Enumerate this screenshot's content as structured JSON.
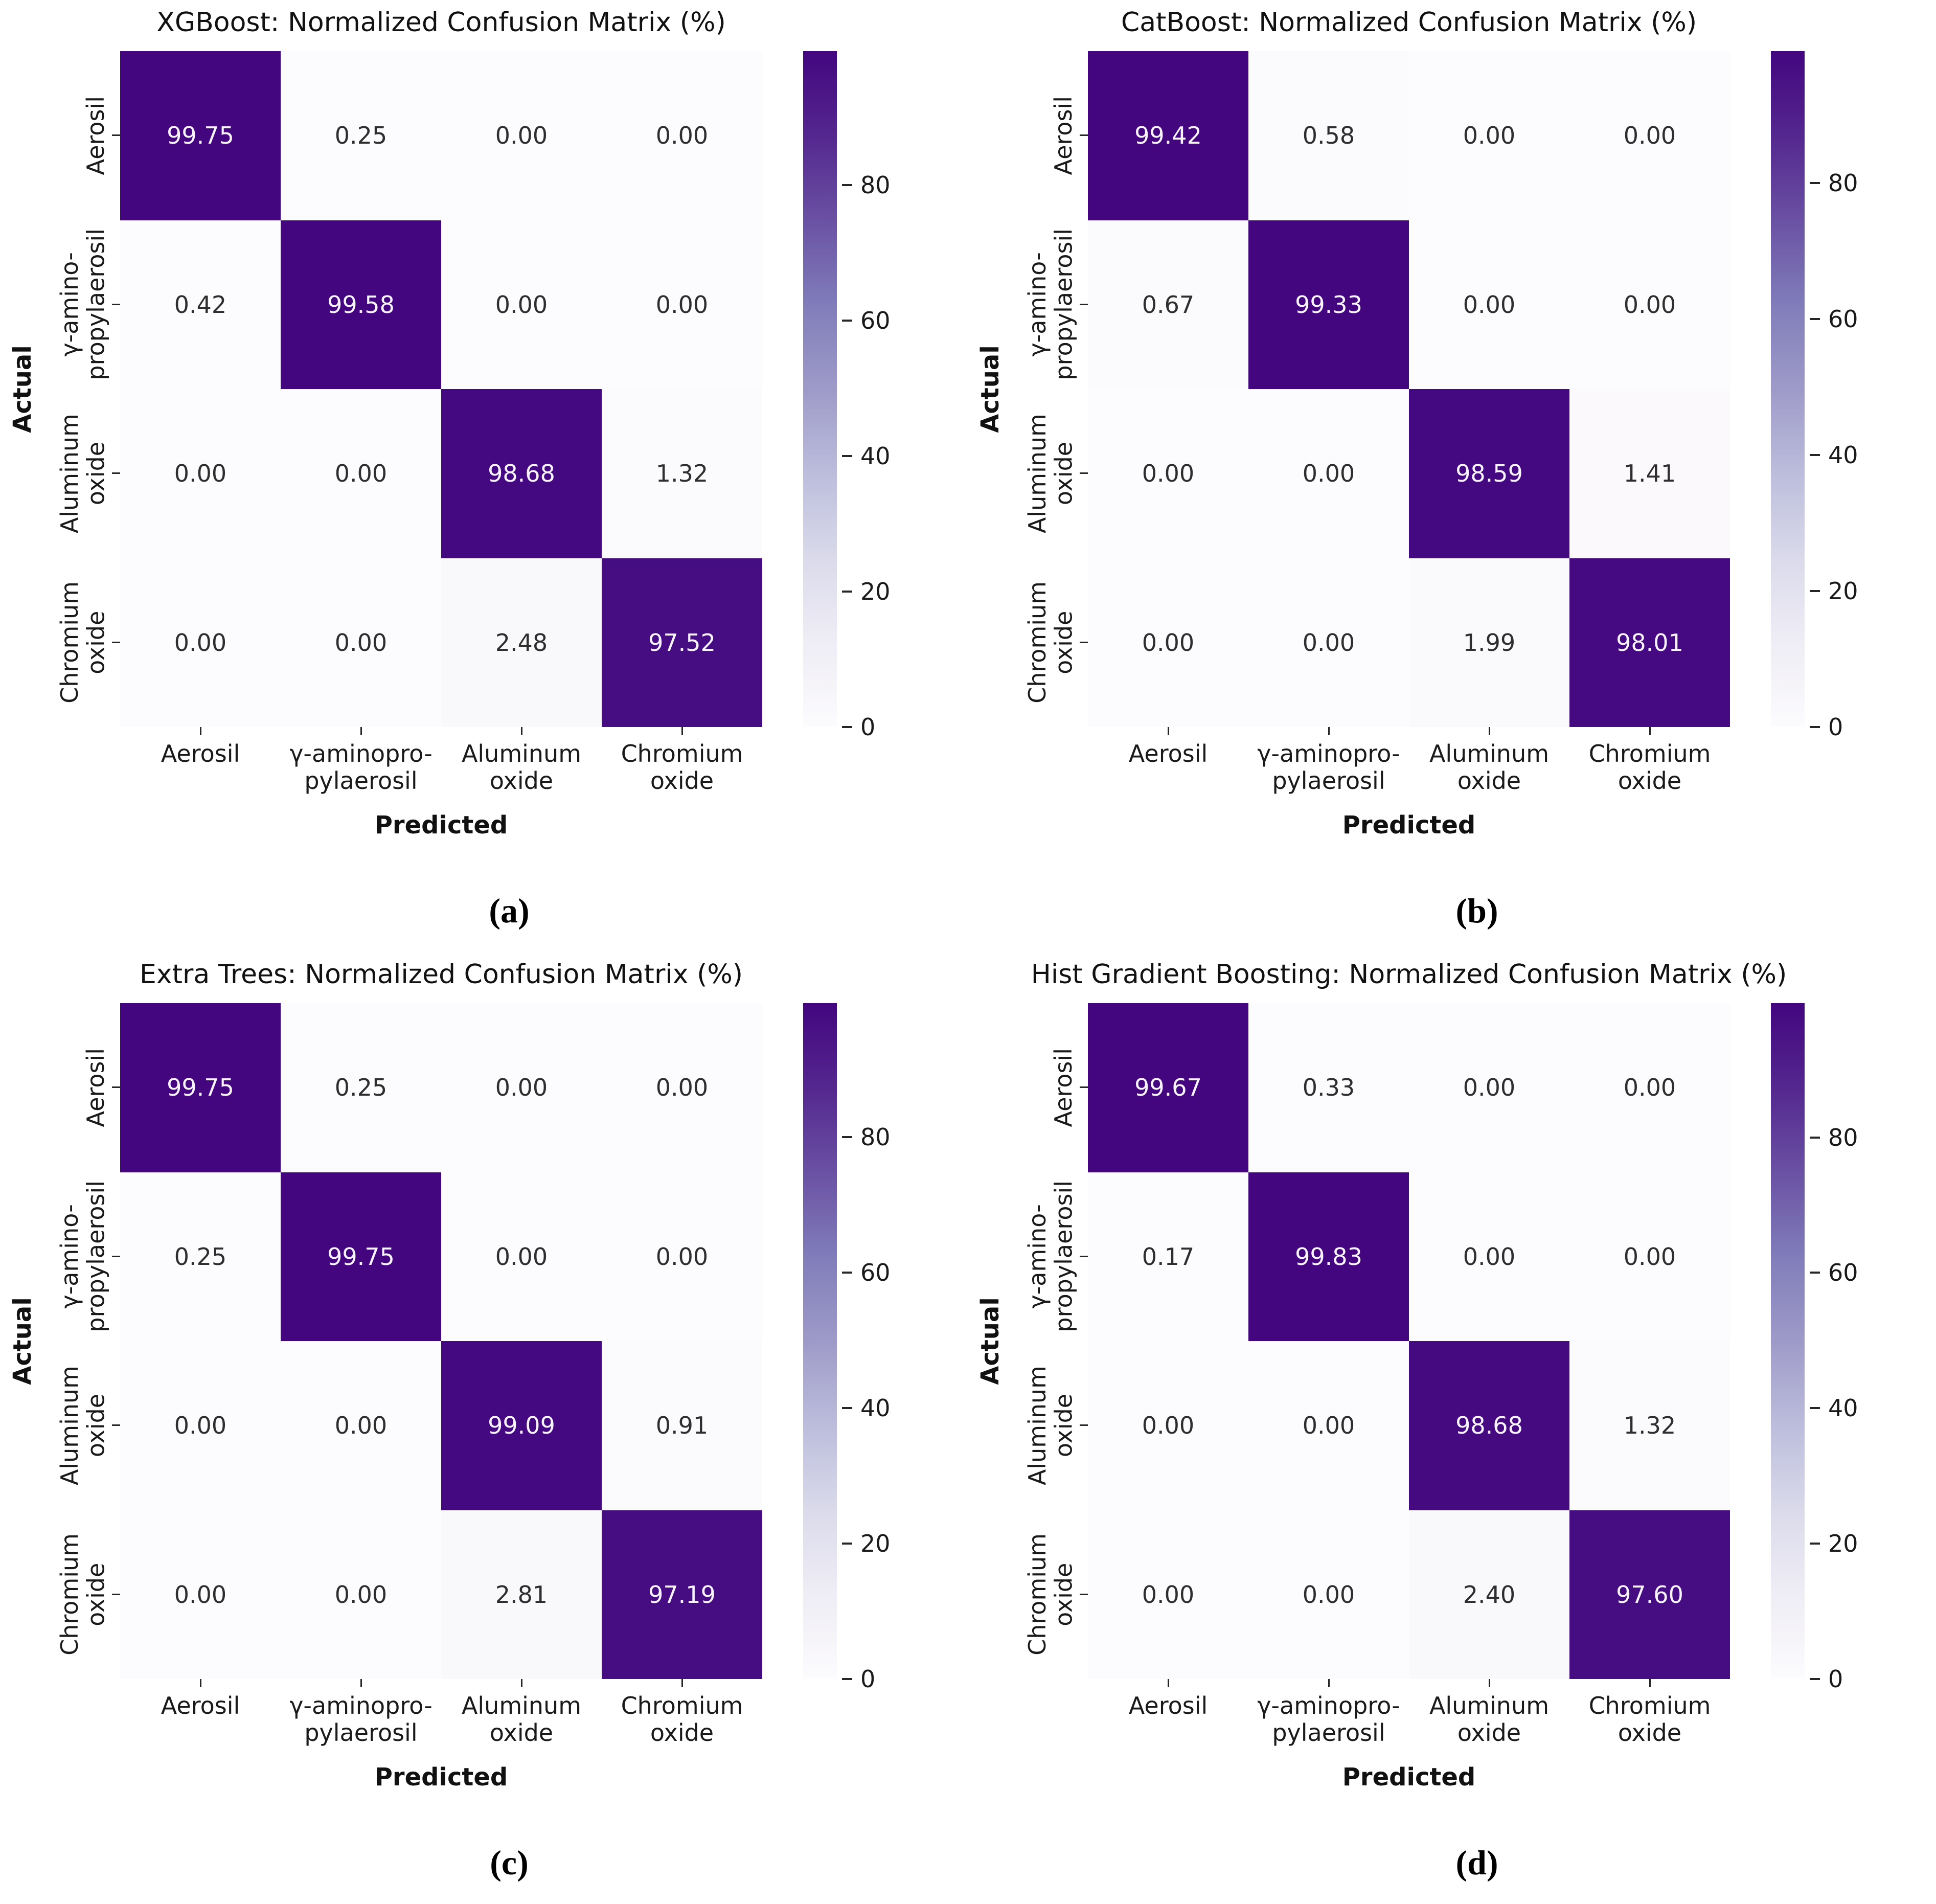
{
  "figure": {
    "background": "#ffffff",
    "cmap_name": "Purples",
    "cmap_stops": [
      "#fcfbfd",
      "#efedf5",
      "#dadaeb",
      "#bcbddc",
      "#9e9ac8",
      "#807dba",
      "#6a51a3",
      "#54278f",
      "#43067f"
    ],
    "cell_text_light": "#f7f3fa",
    "cell_text_dark": "#2e2e2e",
    "tick_color": "#262626"
  },
  "chart_data": [
    {
      "type": "heatmap",
      "panel": "a",
      "caption": "(a)",
      "title": "XGBoost: Normalized Confusion Matrix (%)",
      "xlabel": "Predicted",
      "ylabel": "Actual",
      "x_categories": [
        "Aerosil",
        "γ-aminopro-\npylaerosil",
        "Aluminum\noxide",
        "Chromium\noxide"
      ],
      "y_categories": [
        "Aerosil",
        "γ-amino-\npropylaerosil",
        "Aluminum\noxide",
        "Chromium\noxide"
      ],
      "values": [
        [
          99.75,
          0.25,
          0.0,
          0.0
        ],
        [
          0.42,
          99.58,
          0.0,
          0.0
        ],
        [
          0.0,
          0.0,
          98.68,
          1.32
        ],
        [
          0.0,
          0.0,
          2.48,
          97.52
        ]
      ],
      "value_decimals": 2,
      "vmin": 0,
      "colorbar_ticks": [
        80,
        60,
        40,
        20,
        0
      ],
      "legend_position": "right-colorbar",
      "grid": false
    },
    {
      "type": "heatmap",
      "panel": "b",
      "caption": "(b)",
      "title": "CatBoost: Normalized Confusion Matrix (%)",
      "xlabel": "Predicted",
      "ylabel": "Actual",
      "x_categories": [
        "Aerosil",
        "γ-aminopro-\npylaerosil",
        "Aluminum\noxide",
        "Chromium\noxide"
      ],
      "y_categories": [
        "Aerosil",
        "γ-amino-\npropylaerosil",
        "Aluminum\noxide",
        "Chromium\noxide"
      ],
      "values": [
        [
          99.42,
          0.58,
          0.0,
          0.0
        ],
        [
          0.67,
          99.33,
          0.0,
          0.0
        ],
        [
          0.0,
          0.0,
          98.59,
          1.41
        ],
        [
          0.0,
          0.0,
          1.99,
          98.01
        ]
      ],
      "value_decimals": 2,
      "vmin": 0,
      "colorbar_ticks": [
        80,
        60,
        40,
        20,
        0
      ],
      "legend_position": "right-colorbar",
      "grid": false
    },
    {
      "type": "heatmap",
      "panel": "c",
      "caption": "(c)",
      "title": "Extra Trees: Normalized Confusion Matrix (%)",
      "xlabel": "Predicted",
      "ylabel": "Actual",
      "x_categories": [
        "Aerosil",
        "γ-aminopro-\npylaerosil",
        "Aluminum\noxide",
        "Chromium\noxide"
      ],
      "y_categories": [
        "Aerosil",
        "γ-amino-\npropylaerosil",
        "Aluminum\noxide",
        "Chromium\noxide"
      ],
      "values": [
        [
          99.75,
          0.25,
          0.0,
          0.0
        ],
        [
          0.25,
          99.75,
          0.0,
          0.0
        ],
        [
          0.0,
          0.0,
          99.09,
          0.91
        ],
        [
          0.0,
          0.0,
          2.81,
          97.19
        ]
      ],
      "value_decimals": 2,
      "vmin": 0,
      "colorbar_ticks": [
        80,
        60,
        40,
        20,
        0
      ],
      "legend_position": "right-colorbar",
      "grid": false
    },
    {
      "type": "heatmap",
      "panel": "d",
      "caption": "(d)",
      "title": "Hist Gradient Boosting: Normalized Confusion Matrix (%)",
      "xlabel": "Predicted",
      "ylabel": "Actual",
      "x_categories": [
        "Aerosil",
        "γ-aminopro-\npylaerosil",
        "Aluminum\noxide",
        "Chromium\noxide"
      ],
      "y_categories": [
        "Aerosil",
        "γ-amino-\npropylaerosil",
        "Aluminum\noxide",
        "Chromium\noxide"
      ],
      "values": [
        [
          99.67,
          0.33,
          0.0,
          0.0
        ],
        [
          0.17,
          99.83,
          0.0,
          0.0
        ],
        [
          0.0,
          0.0,
          98.68,
          1.32
        ],
        [
          0.0,
          0.0,
          2.4,
          97.6
        ]
      ],
      "value_decimals": 2,
      "vmin": 0,
      "colorbar_ticks": [
        80,
        60,
        40,
        20,
        0
      ],
      "legend_position": "right-colorbar",
      "grid": false
    }
  ]
}
